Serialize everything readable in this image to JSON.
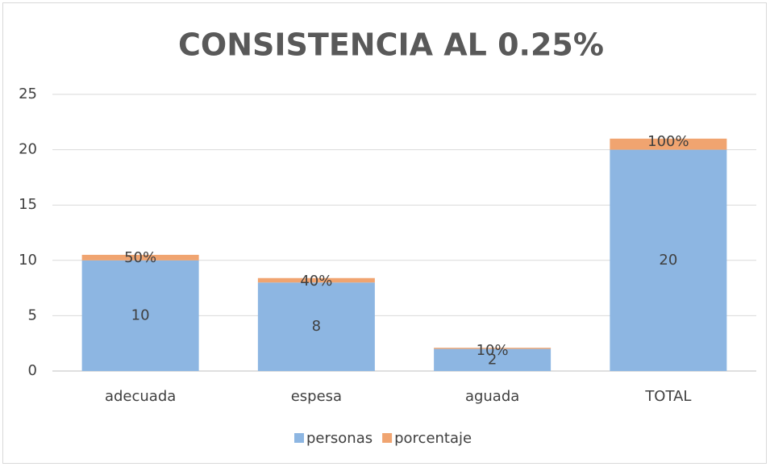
{
  "chart_data": {
    "type": "stacked_bar",
    "title": "CONSISTENCIA AL 0.25%",
    "categories": [
      "adecuada",
      "espesa",
      "aguada",
      "TOTAL"
    ],
    "series": [
      {
        "name": "personas",
        "color": "#8db6e2",
        "values": [
          10,
          8,
          2,
          20
        ],
        "value_labels": [
          "10",
          "8",
          "2",
          "20"
        ]
      },
      {
        "name": "porcentaje",
        "color": "#f0a470",
        "values": [
          0.5,
          0.4,
          0.1,
          1
        ],
        "value_labels": [
          "50%",
          "40%",
          "10%",
          "100%"
        ]
      }
    ],
    "ylim": [
      0,
      25
    ],
    "yticks": [
      0,
      5,
      10,
      15,
      20,
      25
    ],
    "grid": true,
    "legend": "bottom"
  }
}
